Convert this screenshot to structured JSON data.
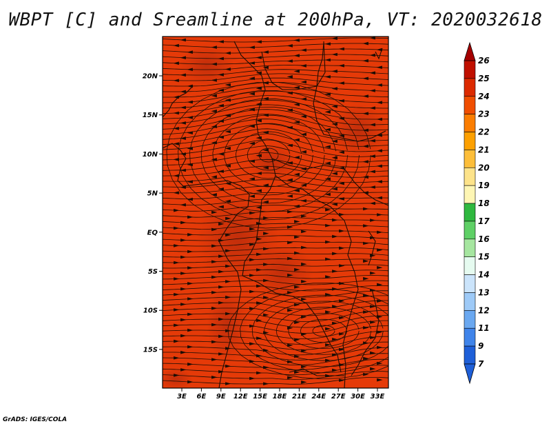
{
  "title": "WBPT [C] and Sreamline at 200hPa, VT: 2020032618",
  "credit": "GrADS: IGES/COLA",
  "map": {
    "lat_ticks": [
      "20N",
      "15N",
      "10N",
      "5N",
      "EQ",
      "5S",
      "10S",
      "15S"
    ],
    "lon_ticks": [
      "3E",
      "6E",
      "9E",
      "12E",
      "15E",
      "18E",
      "21E",
      "24E",
      "27E",
      "30E",
      "33E"
    ]
  },
  "colorbar": {
    "labels": [
      "26",
      "25",
      "24",
      "23",
      "22",
      "21",
      "20",
      "19",
      "18",
      "17",
      "16",
      "15",
      "14",
      "13",
      "12",
      "11",
      "9",
      "7"
    ],
    "colors": [
      "#a50000",
      "#c01000",
      "#dc2a00",
      "#f04e00",
      "#fb7d00",
      "#fda000",
      "#fdbe3a",
      "#fde38a",
      "#fef6b4",
      "#2fb83f",
      "#5fd066",
      "#a6e6a0",
      "#e6fbf0",
      "#cbe4fb",
      "#9ecaf7",
      "#6aa8f0",
      "#3f84ea",
      "#1e5fd8"
    ]
  }
}
